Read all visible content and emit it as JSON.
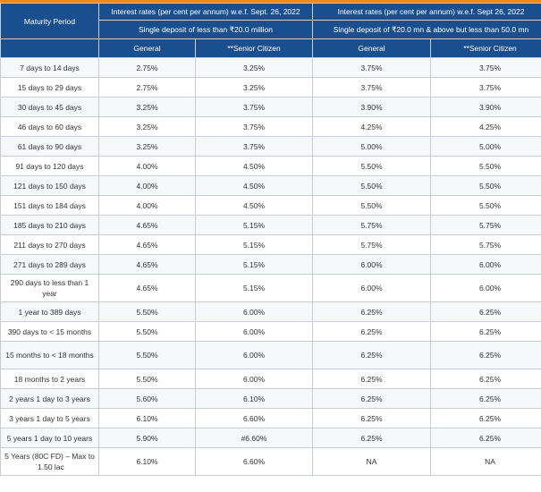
{
  "header": {
    "maturity_label": "Maturity Period",
    "group1_title": "Interest rates (per cent per annum) w.e.f. Sept. 26, 2022",
    "group2_title": "Interest rates (per cent per annum) w.e.f. Sept 26, 2022",
    "group1_subtitle": "Single deposit of less than ₹20.0 million",
    "group2_subtitle": "Single deposit of ₹20.0 mn & above but less than 50.0 mn",
    "general": "General",
    "senior": "**Senior Citizen"
  },
  "colors": {
    "header_bg": "#1a4f8f",
    "accent_bar": "#f08a1c"
  },
  "rows": [
    {
      "period": "7 days to 14 days",
      "g1": "2.75%",
      "s1": "3.25%",
      "g2": "3.75%",
      "s2": "3.75%"
    },
    {
      "period": "15 days to 29 days",
      "g1": "2.75%",
      "s1": "3.25%",
      "g2": "3.75%",
      "s2": "3.75%"
    },
    {
      "period": "30 days to 45 days",
      "g1": "3.25%",
      "s1": "3.75%",
      "g2": "3.90%",
      "s2": "3.90%"
    },
    {
      "period": "46 days to 60 days",
      "g1": "3.25%",
      "s1": "3.75%",
      "g2": "4.25%",
      "s2": "4.25%"
    },
    {
      "period": "61 days to 90 days",
      "g1": "3.25%",
      "s1": "3.75%",
      "g2": "5.00%",
      "s2": "5.00%"
    },
    {
      "period": "91 days to 120 days",
      "g1": "4.00%",
      "s1": "4.50%",
      "g2": "5.50%",
      "s2": "5.50%"
    },
    {
      "period": "121 days to 150 days",
      "g1": "4.00%",
      "s1": "4.50%",
      "g2": "5.50%",
      "s2": "5.50%"
    },
    {
      "period": "151 days to 184 days",
      "g1": "4.00%",
      "s1": "4.50%",
      "g2": "5.50%",
      "s2": "5.50%"
    },
    {
      "period": "185 days to 210 days",
      "g1": "4.65%",
      "s1": "5.15%",
      "g2": "5.75%",
      "s2": "5.75%"
    },
    {
      "period": "211 days to 270 days",
      "g1": "4.65%",
      "s1": "5.15%",
      "g2": "5.75%",
      "s2": "5.75%"
    },
    {
      "period": "271 days to 289 days",
      "g1": "4.65%",
      "s1": "5.15%",
      "g2": "6.00%",
      "s2": "6.00%"
    },
    {
      "period": "290 days to less than 1 year",
      "g1": "4.65%",
      "s1": "5.15%",
      "g2": "6.00%",
      "s2": "6.00%"
    },
    {
      "period": "1 year to 389 days",
      "g1": "5.50%",
      "s1": "6.00%",
      "g2": "6.25%",
      "s2": "6.25%"
    },
    {
      "period": "390 days to < 15 months",
      "g1": "5.50%",
      "s1": "6.00%",
      "g2": "6.25%",
      "s2": "6.25%"
    },
    {
      "period": "15 months to < 18 months",
      "g1": "5.50%",
      "s1": "6.00%",
      "g2": "6.25%",
      "s2": "6.25%"
    },
    {
      "period": "18 months to 2 years",
      "g1": "5.50%",
      "s1": "6.00%",
      "g2": "6.25%",
      "s2": "6.25%"
    },
    {
      "period": "2 years 1 day to 3 years",
      "g1": "5.60%",
      "s1": "6.10%",
      "g2": "6.25%",
      "s2": "6.25%"
    },
    {
      "period": "3 years 1 day to 5 years",
      "g1": "6.10%",
      "s1": "6.60%",
      "g2": "6.25%",
      "s2": "6.25%"
    },
    {
      "period": "5 years 1 day to 10 years",
      "g1": "5.90%",
      "s1": "#6.60%",
      "g2": "6.25%",
      "s2": "6.25%"
    },
    {
      "period": "5 Years (80C FD) – Max to `1.50 lac",
      "g1": "6.10%",
      "s1": "6.60%",
      "g2": "NA",
      "s2": "NA"
    }
  ]
}
